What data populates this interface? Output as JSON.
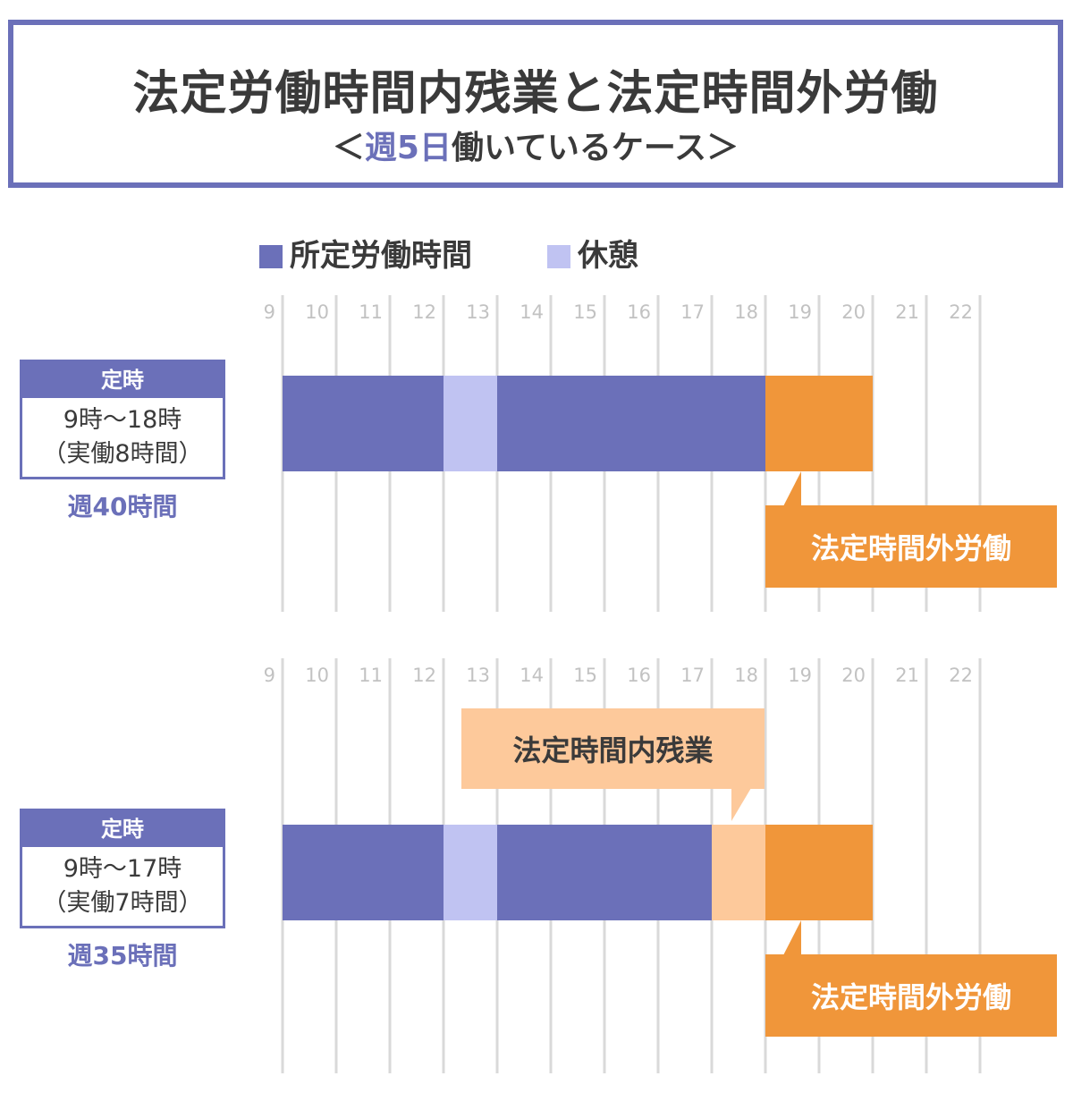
{
  "title": {
    "main": "法定労働時間内残業と法定時間外労働",
    "sub_open": "＜",
    "sub_highlight": "週5日",
    "sub_rest": "働いているケース",
    "sub_close": "＞"
  },
  "colors": {
    "frame": "#6b70b9",
    "scheduled": "#6b70b9",
    "break": "#c0c3f2",
    "in_overtime": "#fdc99b",
    "out_overtime": "#f0963a",
    "grid": "#d9d9d9"
  },
  "legend": {
    "scheduled": "所定労働時間",
    "break": "休憩"
  },
  "chart_data": [
    {
      "type": "gantt",
      "hour_ticks": [
        "9",
        "10",
        "11",
        "12",
        "13",
        "14",
        "15",
        "16",
        "17",
        "18",
        "19",
        "20",
        "21",
        "22"
      ],
      "segments": [
        {
          "kind": "scheduled",
          "start": 9,
          "end": 12
        },
        {
          "kind": "break",
          "start": 12,
          "end": 13
        },
        {
          "kind": "scheduled",
          "start": 13,
          "end": 18
        },
        {
          "kind": "out_overtime",
          "start": 18,
          "end": 20
        }
      ],
      "case": {
        "head": "定時",
        "hours": "9時〜18時",
        "actual": "（実働8時間）",
        "week": "週40時間"
      },
      "callouts": [
        {
          "kind": "out",
          "text": "法定時間外労働"
        }
      ]
    },
    {
      "type": "gantt",
      "hour_ticks": [
        "9",
        "10",
        "11",
        "12",
        "13",
        "14",
        "15",
        "16",
        "17",
        "18",
        "19",
        "20",
        "21",
        "22"
      ],
      "segments": [
        {
          "kind": "scheduled",
          "start": 9,
          "end": 12
        },
        {
          "kind": "break",
          "start": 12,
          "end": 13
        },
        {
          "kind": "scheduled",
          "start": 13,
          "end": 17
        },
        {
          "kind": "in_overtime",
          "start": 17,
          "end": 18
        },
        {
          "kind": "out_overtime",
          "start": 18,
          "end": 20
        }
      ],
      "case": {
        "head": "定時",
        "hours": "9時〜17時",
        "actual": "（実働7時間）",
        "week": "週35時間"
      },
      "callouts": [
        {
          "kind": "in",
          "text": "法定時間内残業"
        },
        {
          "kind": "out",
          "text": "法定時間外労働"
        }
      ]
    }
  ]
}
